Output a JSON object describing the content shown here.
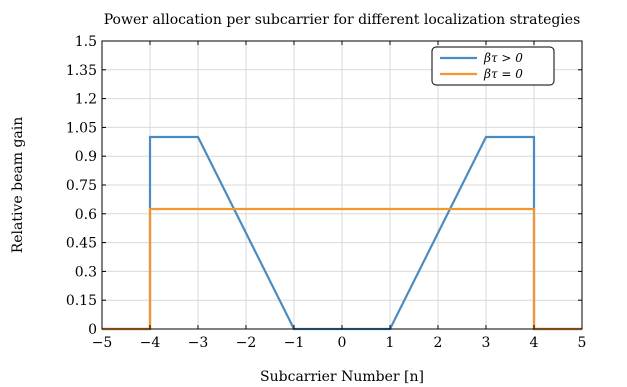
{
  "chart_data": {
    "type": "line",
    "title": "Power allocation per subcarrier for different localization strategies",
    "xlabel": "Subcarrier Number [n]",
    "ylabel": "Relative beam gain",
    "xlim": [
      -5,
      5
    ],
    "ylim": [
      0,
      1.5
    ],
    "xticks": [
      -5,
      -4,
      -3,
      -2,
      -1,
      0,
      1,
      2,
      3,
      4,
      5
    ],
    "xtick_labels": [
      "−5",
      "−4",
      "−3",
      "−2",
      "−1",
      "0",
      "1",
      "2",
      "3",
      "4",
      "5"
    ],
    "yticks": [
      0,
      0.15,
      0.3,
      0.45,
      0.6,
      0.75,
      0.9,
      1.05,
      1.2,
      1.35,
      1.5
    ],
    "ytick_labels": [
      "0",
      "0.15",
      "0.3",
      "0.45",
      "0.6",
      "0.75",
      "0.9",
      "1.05",
      "1.2",
      "1.35",
      "1.5"
    ],
    "grid": true,
    "legend_position": "top-right",
    "series": [
      {
        "name": "βτ > 0",
        "color": "#4a8cc2",
        "x": [
          -5,
          -4,
          -4,
          -3,
          -1,
          1,
          3,
          4,
          4,
          5
        ],
        "y": [
          0,
          0,
          1.0,
          1.0,
          0,
          0,
          1.0,
          1.0,
          0,
          0
        ]
      },
      {
        "name": "βτ = 0",
        "color": "#f2962f",
        "x": [
          -5,
          -4,
          -4,
          4,
          4,
          5
        ],
        "y": [
          0,
          0,
          0.625,
          0.625,
          0,
          0
        ]
      }
    ]
  }
}
